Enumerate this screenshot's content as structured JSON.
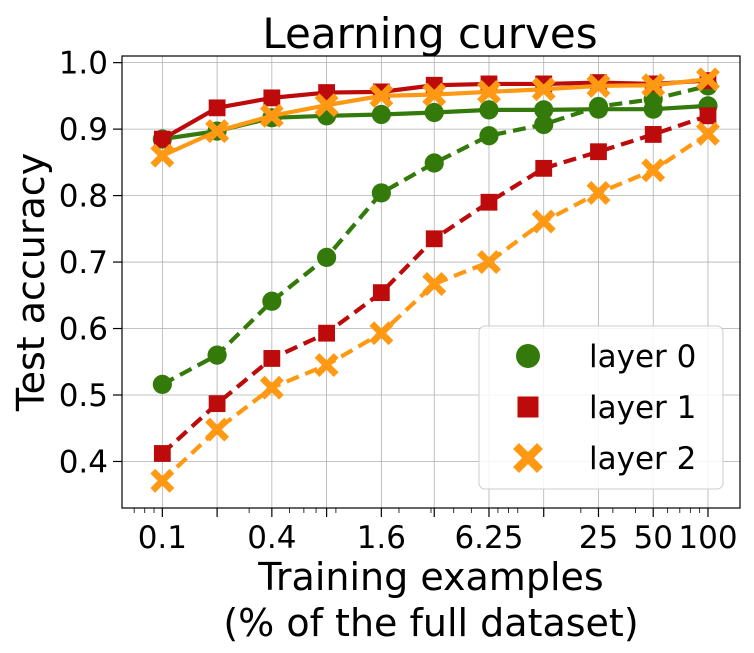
{
  "chart_data": {
    "type": "line",
    "title": "Learning curves",
    "xlabel_lines": [
      "Training examples",
      "(% of the full dataset)"
    ],
    "ylabel": "Test accuracy",
    "xscale": "log",
    "xlim": [
      0.06,
      150
    ],
    "ylim": [
      0.33,
      1.01
    ],
    "grid": true,
    "legend_position": "lower-right",
    "x": [
      0.1,
      0.2,
      0.4,
      0.8,
      1.6,
      3.125,
      6.25,
      12.5,
      25,
      50,
      100
    ],
    "x_tick_values": [
      0.1,
      0.4,
      1.6,
      6.25,
      25,
      50,
      100
    ],
    "x_tick_labels": [
      "0.1",
      "0.4",
      "1.6",
      "6.25",
      "25",
      "50",
      "100"
    ],
    "y_tick_values": [
      0.4,
      0.5,
      0.6,
      0.7,
      0.8,
      0.9,
      1.0
    ],
    "y_tick_labels": [
      "0.4",
      "0.5",
      "0.6",
      "0.7",
      "0.8",
      "0.9",
      "1.0"
    ],
    "legend": [
      {
        "label": "layer 0",
        "color": "#337a0b",
        "marker": "circle"
      },
      {
        "label": "layer 1",
        "color": "#bd0a0a",
        "marker": "square"
      },
      {
        "label": "layer 2",
        "color": "#ff9913",
        "marker": "x"
      }
    ],
    "series": [
      {
        "group": 0,
        "style": "solid",
        "color": "#337a0b",
        "marker": "circle",
        "values": [
          0.885,
          0.897,
          0.917,
          0.92,
          0.922,
          0.925,
          0.929,
          0.929,
          0.93,
          0.93,
          0.935
        ]
      },
      {
        "group": 0,
        "style": "dashed",
        "color": "#337a0b",
        "marker": "circle",
        "values": [
          0.516,
          0.56,
          0.641,
          0.707,
          0.804,
          0.849,
          0.89,
          0.907,
          0.934,
          0.945,
          0.965
        ]
      },
      {
        "group": 1,
        "style": "solid",
        "color": "#bd0a0a",
        "marker": "square",
        "values": [
          0.885,
          0.932,
          0.947,
          0.955,
          0.956,
          0.966,
          0.968,
          0.968,
          0.97,
          0.968,
          0.973
        ]
      },
      {
        "group": 1,
        "style": "dashed",
        "color": "#bd0a0a",
        "marker": "square",
        "values": [
          0.412,
          0.487,
          0.555,
          0.593,
          0.654,
          0.735,
          0.79,
          0.841,
          0.866,
          0.892,
          0.92
        ]
      },
      {
        "group": 2,
        "style": "solid",
        "color": "#ff9913",
        "marker": "x",
        "values": [
          0.86,
          0.897,
          0.92,
          0.936,
          0.95,
          0.952,
          0.956,
          0.96,
          0.965,
          0.966,
          0.975
        ]
      },
      {
        "group": 2,
        "style": "dashed",
        "color": "#ff9913",
        "marker": "x",
        "values": [
          0.371,
          0.448,
          0.511,
          0.545,
          0.593,
          0.667,
          0.7,
          0.761,
          0.804,
          0.838,
          0.893
        ]
      }
    ]
  }
}
